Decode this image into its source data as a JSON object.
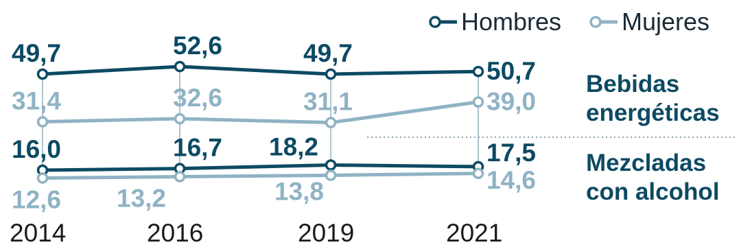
{
  "chart_data": {
    "type": "line",
    "x": [
      "2014",
      "2016",
      "2019",
      "2021"
    ],
    "legend": [
      {
        "name": "Hombres",
        "color": "#0d4a63",
        "icon": "open-circle-line-icon"
      },
      {
        "name": "Mujeres",
        "color": "#8fb3c4",
        "icon": "open-circle-line-icon"
      }
    ],
    "legend_position": "top-right",
    "groups": [
      {
        "label_line1": "Bebidas",
        "label_line2": "energéticas",
        "series": [
          {
            "name": "Hombres",
            "color": "#0d4a63",
            "values": [
              49.7,
              52.6,
              49.7,
              50.7
            ],
            "labels": [
              "49,7",
              "52,6",
              "49,7",
              "50,7"
            ]
          },
          {
            "name": "Mujeres",
            "color": "#8fb3c4",
            "values": [
              31.4,
              32.6,
              31.1,
              39.0
            ],
            "labels": [
              "31,4",
              "32,6",
              "31,1",
              "39,0"
            ]
          }
        ]
      },
      {
        "label_line1": "Mezcladas",
        "label_line2": "con alcohol",
        "series": [
          {
            "name": "Hombres",
            "color": "#0d4a63",
            "values": [
              16.0,
              16.7,
              18.2,
              17.5
            ],
            "labels": [
              "16,0",
              "16,7",
              "18,2",
              "17,5"
            ]
          },
          {
            "name": "Mujeres",
            "color": "#8fb3c4",
            "values": [
              12.6,
              13.2,
              13.8,
              14.6
            ],
            "labels": [
              "12,6",
              "13,2",
              "13,8",
              "14,6"
            ]
          }
        ]
      }
    ],
    "grid": false,
    "colors": {
      "hombres": "#0d4a63",
      "mujeres": "#8fb3c4",
      "drop_line": "#b0c4ce",
      "divider": "#8aa0ab"
    }
  }
}
